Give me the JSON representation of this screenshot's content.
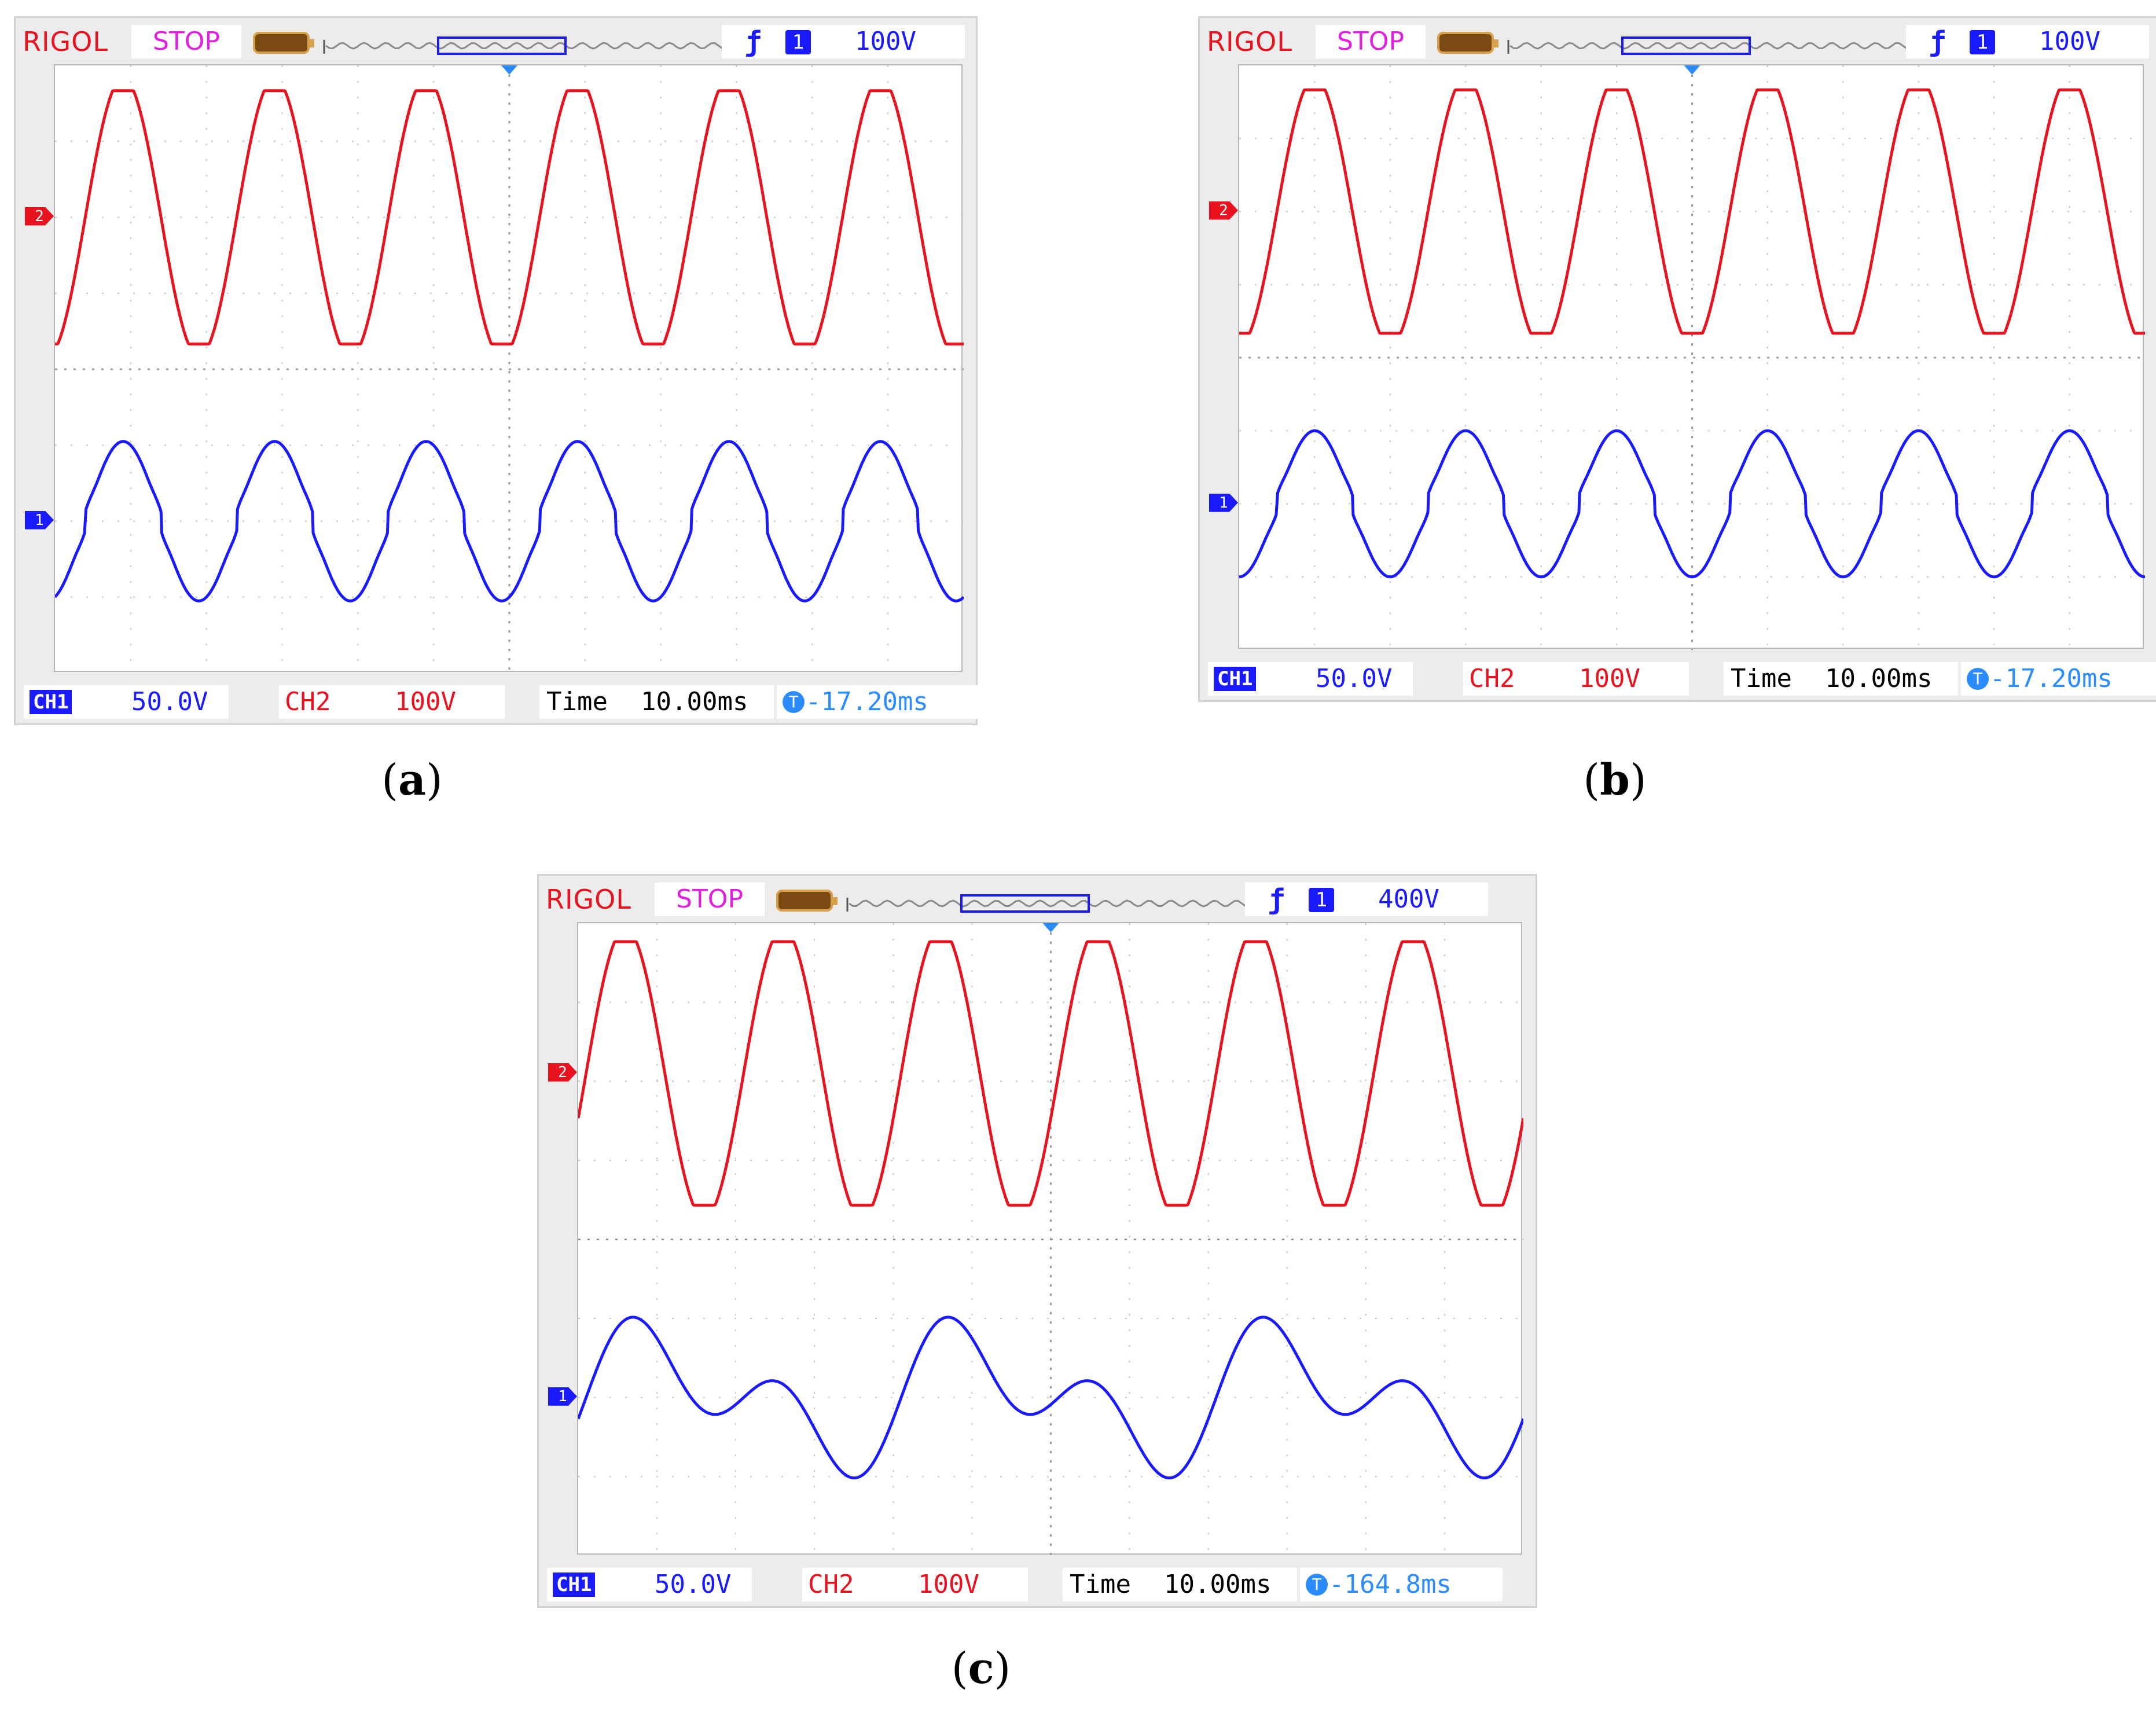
{
  "panels": [
    {
      "caption": "a",
      "header": {
        "brand": "RIGOL",
        "status": "STOP",
        "trigger_level": "100V",
        "trigger_channel": "1"
      },
      "footer": {
        "ch1_label": "CH1",
        "ch1_scale": "50.0V",
        "ch2_label": "CH2",
        "ch2_scale": "100V",
        "time_label": "Time",
        "time_scale": "10.00ms",
        "trigger_offset": "-17.20ms"
      }
    },
    {
      "caption": "b",
      "header": {
        "brand": "RIGOL",
        "status": "STOP",
        "trigger_level": "100V",
        "trigger_channel": "1"
      },
      "footer": {
        "ch1_label": "CH1",
        "ch1_scale": "50.0V",
        "ch2_label": "CH2",
        "ch2_scale": "100V",
        "time_label": "Time",
        "time_scale": "10.00ms",
        "trigger_offset": "-17.20ms"
      }
    },
    {
      "caption": "c",
      "header": {
        "brand": "RIGOL",
        "status": "STOP",
        "trigger_level": "400V",
        "trigger_channel": "1"
      },
      "footer": {
        "ch1_label": "CH1",
        "ch1_scale": "50.0V",
        "ch2_label": "CH2",
        "ch2_scale": "100V",
        "time_label": "Time",
        "time_scale": "10.00ms",
        "trigger_offset": "-164.8ms"
      }
    }
  ],
  "chart_data": [
    {
      "type": "line",
      "xlabel": "Time",
      "xlim": [
        0,
        120
      ],
      "ylim": [
        -4,
        4
      ],
      "grid": true,
      "series": [
        {
          "name": "CH2",
          "color": "#e8131e",
          "unit": "V/div 100V",
          "x_ms": [
            0,
            10,
            20,
            30,
            40,
            50,
            60,
            70,
            80,
            90,
            100,
            110,
            120
          ],
          "description": "sinusoid, period 20ms, amplitude ~1.7 div, offset +2 div",
          "amplitude_div": 1.7,
          "offset_div": 2.0,
          "period_ms": 20.0
        },
        {
          "name": "CH1",
          "color": "#1a1aff",
          "unit": "V/div 50.0V",
          "amplitude_div": 1.05,
          "offset_div": -2.0,
          "period_ms": 20.0,
          "notch": "small steps near zero crossing"
        }
      ]
    },
    {
      "type": "line",
      "xlabel": "Time",
      "xlim": [
        0,
        120
      ],
      "ylim": [
        -4,
        4
      ],
      "grid": true,
      "series": [
        {
          "name": "CH2",
          "color": "#e8131e",
          "amplitude_div": 1.7,
          "offset_div": 2.0,
          "period_ms": 20.0
        },
        {
          "name": "CH1",
          "color": "#1a1aff",
          "amplitude_div": 1.0,
          "offset_div": -2.0,
          "period_ms": 20.0,
          "notch": "small steps near zero crossing"
        }
      ]
    },
    {
      "type": "line",
      "xlabel": "Time",
      "xlim": [
        0,
        120
      ],
      "ylim": [
        -4,
        4
      ],
      "grid": true,
      "series": [
        {
          "name": "CH2",
          "color": "#e8131e",
          "amplitude_div": 1.7,
          "offset_div": 2.1,
          "period_ms": 20.0
        },
        {
          "name": "CH1",
          "color": "#1a1aff",
          "amplitude_div": 1.05,
          "offset_div": -2.0,
          "period_ms": 20.0,
          "modulation": "low-frequency 40ms envelope with double humps"
        }
      ]
    }
  ]
}
